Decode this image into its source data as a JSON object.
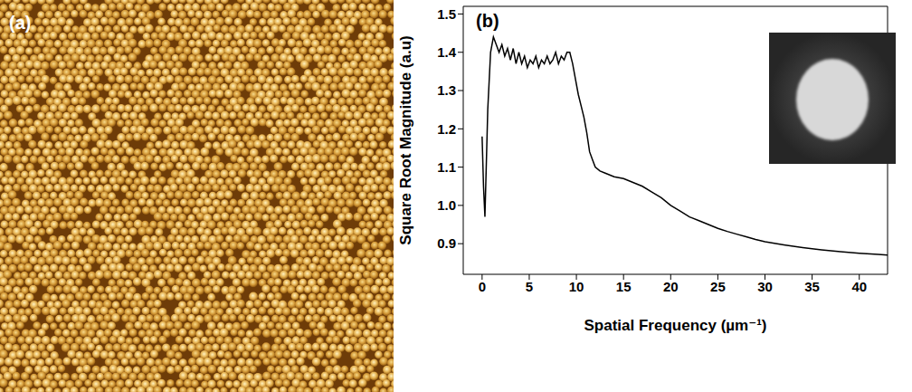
{
  "image": {
    "label": "(a)"
  },
  "chart_data": {
    "type": "line",
    "title": "(b)",
    "x_label": "Spatial Frequency (µm⁻¹)",
    "y_label": "Square Root Magnitude (a.u)",
    "x": [
      0,
      0.15,
      0.3,
      0.6,
      0.9,
      1.2,
      1.5,
      1.8,
      2.1,
      2.4,
      2.7,
      3.0,
      3.3,
      3.6,
      3.9,
      4.2,
      4.5,
      4.8,
      5.1,
      5.4,
      5.7,
      6.0,
      6.3,
      6.6,
      6.9,
      7.2,
      7.5,
      7.8,
      8.1,
      8.4,
      8.7,
      9.0,
      9.3,
      9.6,
      9.9,
      10.2,
      10.5,
      10.8,
      11.1,
      11.4,
      11.7,
      12,
      12.5,
      13,
      14,
      15,
      16,
      17,
      18,
      19,
      20,
      21,
      22,
      23,
      24,
      25,
      26,
      27,
      28,
      29,
      30,
      32,
      34,
      36,
      38,
      40,
      42,
      43
    ],
    "values": [
      1.18,
      1.05,
      0.97,
      1.25,
      1.4,
      1.44,
      1.42,
      1.4,
      1.42,
      1.39,
      1.41,
      1.38,
      1.41,
      1.37,
      1.4,
      1.37,
      1.39,
      1.36,
      1.38,
      1.37,
      1.39,
      1.36,
      1.38,
      1.37,
      1.39,
      1.37,
      1.38,
      1.4,
      1.37,
      1.39,
      1.38,
      1.4,
      1.4,
      1.37,
      1.33,
      1.29,
      1.26,
      1.23,
      1.19,
      1.14,
      1.12,
      1.1,
      1.09,
      1.085,
      1.075,
      1.07,
      1.06,
      1.05,
      1.035,
      1.02,
      1.0,
      0.985,
      0.97,
      0.96,
      0.95,
      0.94,
      0.932,
      0.925,
      0.918,
      0.911,
      0.905,
      0.897,
      0.89,
      0.884,
      0.879,
      0.875,
      0.872,
      0.87
    ],
    "color": "#000000",
    "xlim": [
      -2,
      43
    ],
    "xticks": [
      0,
      5,
      10,
      15,
      20,
      25,
      30,
      35,
      40
    ],
    "ylim": [
      0.82,
      1.52
    ],
    "yticks": [
      0.9,
      {
        "value": 1,
        "label": "1.0"
      },
      1.1,
      1.2,
      1.3,
      1.4,
      1.5
    ],
    "grid": false
  }
}
